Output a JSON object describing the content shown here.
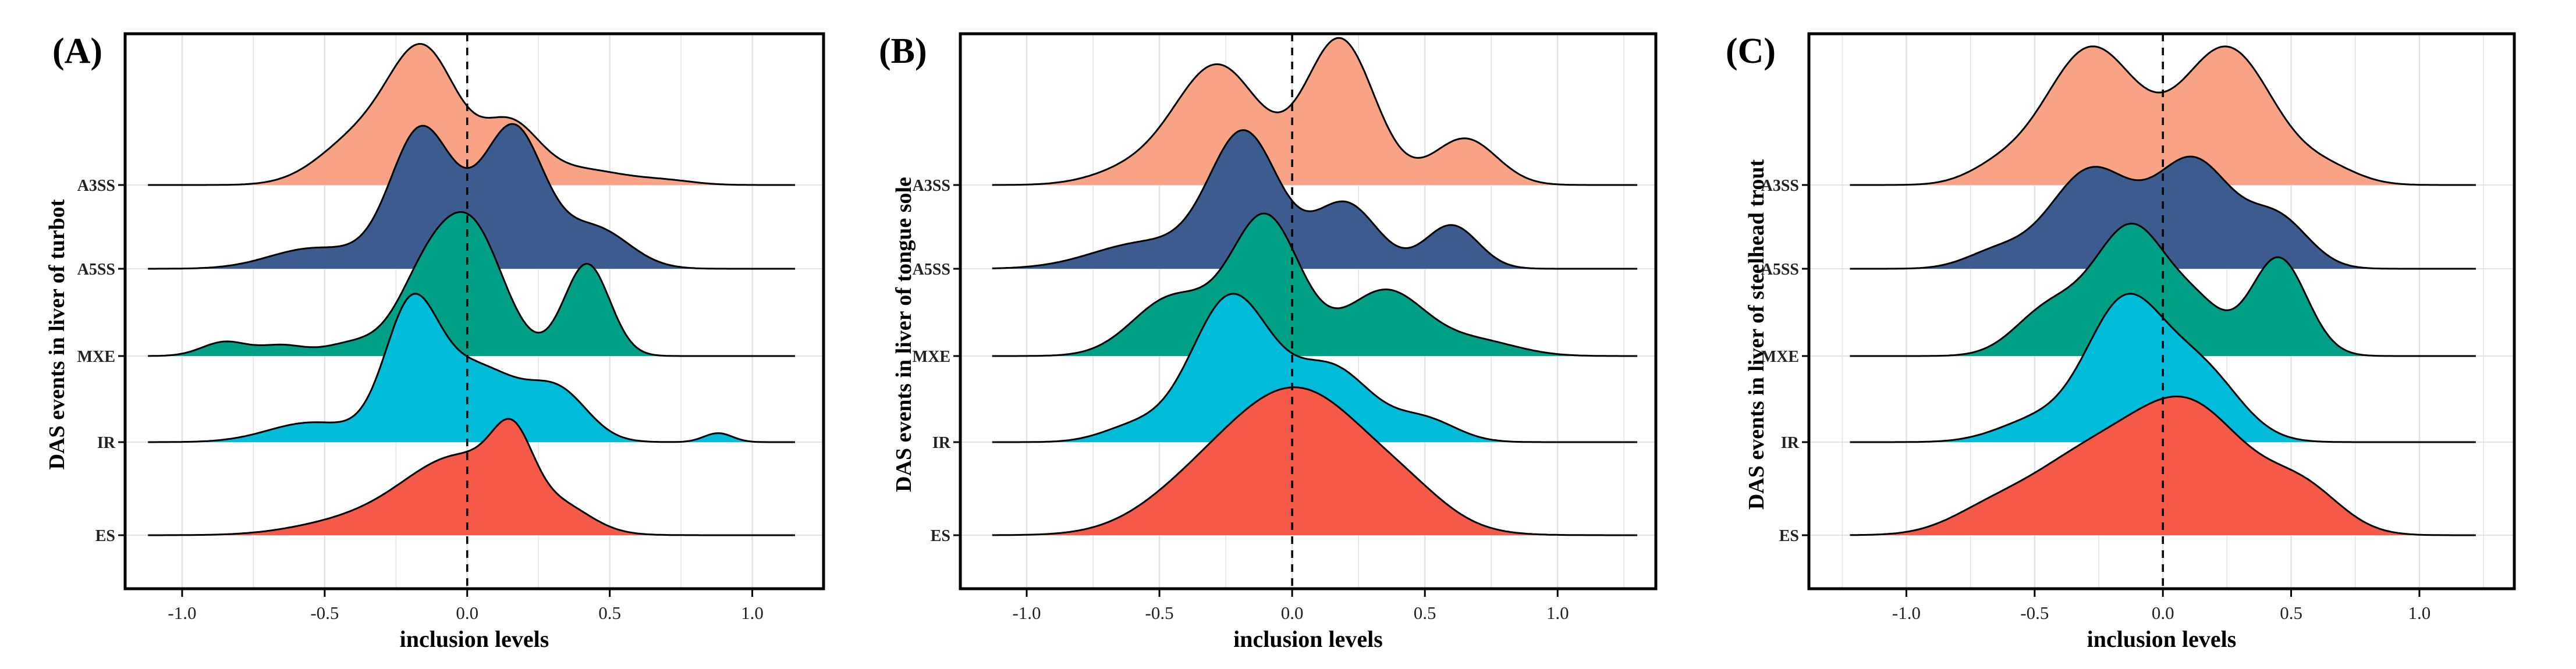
{
  "figure": {
    "colors": {
      "A3SS": "#f9a386",
      "A5SS": "#3c5b8f",
      "MXE": "#00a087",
      "IR": "#00bcd8",
      "ES": "#f55a48",
      "outline": "#000000",
      "grid": "#e3e3e3",
      "background": "#ffffff"
    }
  },
  "chart_data": [
    {
      "type": "ridgeline",
      "panel_label": "(A)",
      "ylabel": "DAS events in liver of turbot",
      "xlabel": "inclusion levels",
      "xlim": [
        -1.2,
        1.25
      ],
      "xticks": [
        "-1.0",
        "-0.5",
        "0.0",
        "0.5",
        "1.0"
      ],
      "tick_values": [
        -1.0,
        -0.5,
        0.0,
        0.5,
        1.0
      ],
      "reference_line": 0.0,
      "categories": [
        "ES",
        "IR",
        "MXE",
        "A5SS",
        "A3SS"
      ],
      "series": [
        {
          "name": "ES",
          "x_range": [
            -1.12,
            1.15
          ],
          "components": [
            [
              -0.02,
              0.21,
              0.62
            ],
            [
              0.16,
              0.07,
              0.45
            ],
            [
              0.35,
              0.1,
              0.12
            ],
            [
              -0.45,
              0.18,
              0.08
            ]
          ]
        },
        {
          "name": "IR",
          "x_range": [
            -1.12,
            1.15
          ],
          "components": [
            [
              -0.2,
              0.09,
              0.85
            ],
            [
              0.02,
              0.18,
              0.6
            ],
            [
              0.33,
              0.1,
              0.3
            ],
            [
              -0.55,
              0.15,
              0.15
            ],
            [
              0.88,
              0.05,
              0.07
            ]
          ]
        },
        {
          "name": "MXE",
          "x_range": [
            -1.12,
            1.15
          ],
          "components": [
            [
              0.02,
              0.11,
              0.95
            ],
            [
              -0.15,
              0.1,
              0.55
            ],
            [
              0.42,
              0.08,
              0.72
            ],
            [
              -0.4,
              0.1,
              0.1
            ],
            [
              -0.85,
              0.08,
              0.11
            ],
            [
              -0.65,
              0.08,
              0.08
            ]
          ]
        },
        {
          "name": "A5SS",
          "x_range": [
            -1.12,
            1.15
          ],
          "components": [
            [
              -0.17,
              0.1,
              0.8
            ],
            [
              0.17,
              0.1,
              0.85
            ],
            [
              -0.02,
              0.2,
              0.4
            ],
            [
              0.45,
              0.12,
              0.3
            ],
            [
              -0.55,
              0.15,
              0.15
            ]
          ]
        },
        {
          "name": "A3SS",
          "x_range": [
            -1.12,
            1.15
          ],
          "components": [
            [
              -0.15,
              0.12,
              1.0
            ],
            [
              0.15,
              0.1,
              0.45
            ],
            [
              -0.38,
              0.14,
              0.35
            ],
            [
              0.4,
              0.15,
              0.12
            ],
            [
              0.7,
              0.1,
              0.03
            ]
          ]
        }
      ]
    },
    {
      "type": "ridgeline",
      "panel_label": "(B)",
      "ylabel": "DAS events in liver of tongue sole",
      "xlabel": "inclusion levels",
      "xlim": [
        -1.25,
        1.37
      ],
      "xticks": [
        "-1.0",
        "-0.5",
        "0.0",
        "0.5",
        "1.0"
      ],
      "tick_values": [
        -1.0,
        -0.5,
        0.0,
        0.5,
        1.0
      ],
      "reference_line": 0.0,
      "categories": [
        "ES",
        "IR",
        "MXE",
        "A5SS",
        "A3SS"
      ],
      "series": [
        {
          "name": "ES",
          "x_range": [
            -1.13,
            1.3
          ],
          "components": [
            [
              0.02,
              0.28,
              1.0
            ],
            [
              -0.4,
              0.2,
              0.15
            ],
            [
              0.45,
              0.15,
              0.12
            ]
          ]
        },
        {
          "name": "IR",
          "x_range": [
            -1.13,
            1.3
          ],
          "components": [
            [
              -0.23,
              0.15,
              1.0
            ],
            [
              0.15,
              0.15,
              0.5
            ],
            [
              0.5,
              0.12,
              0.15
            ],
            [
              -0.6,
              0.12,
              0.1
            ]
          ]
        },
        {
          "name": "MXE",
          "x_range": [
            -1.13,
            1.3
          ],
          "components": [
            [
              -0.1,
              0.13,
              0.95
            ],
            [
              0.35,
              0.15,
              0.45
            ],
            [
              -0.45,
              0.15,
              0.4
            ],
            [
              0.7,
              0.15,
              0.1
            ]
          ]
        },
        {
          "name": "A5SS",
          "x_range": [
            -1.13,
            1.3
          ],
          "components": [
            [
              -0.18,
              0.13,
              0.92
            ],
            [
              0.2,
              0.12,
              0.45
            ],
            [
              0.6,
              0.1,
              0.3
            ],
            [
              -0.55,
              0.2,
              0.18
            ]
          ]
        },
        {
          "name": "A3SS",
          "x_range": [
            -1.13,
            1.3
          ],
          "components": [
            [
              -0.28,
              0.16,
              0.82
            ],
            [
              0.18,
              0.13,
              1.0
            ],
            [
              0.65,
              0.12,
              0.32
            ],
            [
              -0.6,
              0.15,
              0.1
            ]
          ]
        }
      ]
    },
    {
      "type": "ridgeline",
      "panel_label": "(C)",
      "ylabel": "DAS events in liver of steelhead trout",
      "xlabel": "inclusion levels",
      "xlim": [
        -1.38,
        1.37
      ],
      "xticks": [
        "-1.0",
        "-0.5",
        "0.0",
        "0.5",
        "1.0"
      ],
      "tick_values": [
        -1.0,
        -0.5,
        0.0,
        0.5,
        1.0
      ],
      "reference_line": 0.0,
      "categories": [
        "ES",
        "IR",
        "MXE",
        "A5SS",
        "A3SS"
      ],
      "series": [
        {
          "name": "ES",
          "x_range": [
            -1.22,
            1.22
          ],
          "components": [
            [
              0.12,
              0.22,
              0.85
            ],
            [
              -0.3,
              0.25,
              0.55
            ],
            [
              0.55,
              0.15,
              0.3
            ],
            [
              -0.7,
              0.15,
              0.1
            ]
          ]
        },
        {
          "name": "IR",
          "x_range": [
            -1.22,
            1.22
          ],
          "components": [
            [
              -0.15,
              0.15,
              1.0
            ],
            [
              0.15,
              0.15,
              0.5
            ],
            [
              -0.5,
              0.15,
              0.15
            ]
          ]
        },
        {
          "name": "MXE",
          "x_range": [
            -1.22,
            1.22
          ],
          "components": [
            [
              -0.12,
              0.15,
              0.95
            ],
            [
              0.45,
              0.11,
              0.72
            ],
            [
              -0.45,
              0.13,
              0.32
            ],
            [
              0.15,
              0.1,
              0.25
            ]
          ]
        },
        {
          "name": "A5SS",
          "x_range": [
            -1.22,
            1.22
          ],
          "components": [
            [
              -0.28,
              0.16,
              0.72
            ],
            [
              0.12,
              0.15,
              0.78
            ],
            [
              0.45,
              0.12,
              0.35
            ],
            [
              -0.65,
              0.12,
              0.12
            ]
          ]
        },
        {
          "name": "A3SS",
          "x_range": [
            -1.22,
            1.22
          ],
          "components": [
            [
              -0.28,
              0.18,
              1.0
            ],
            [
              0.25,
              0.18,
              1.0
            ],
            [
              -0.65,
              0.12,
              0.1
            ],
            [
              0.65,
              0.12,
              0.1
            ]
          ]
        }
      ]
    }
  ]
}
